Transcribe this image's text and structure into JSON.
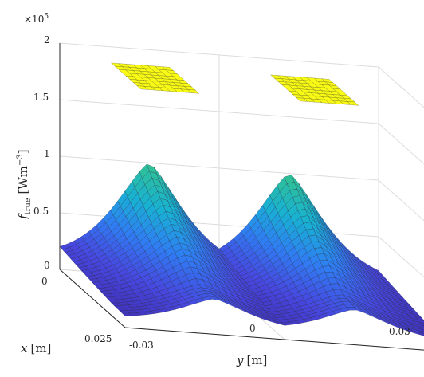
{
  "chart_data": {
    "type": "surface",
    "ylabel": "y [m]",
    "xlabel": "x [m]",
    "zlabel_main": "f",
    "zlabel_sub": "true",
    "zlabel_unit_open": " [Wm",
    "zlabel_unit_exp": "−3",
    "zlabel_unit_close": "]",
    "z_multiplier_base": "×10",
    "z_multiplier_exp": "5",
    "z_ticks": [
      "0",
      "0.5",
      "1",
      "1.5",
      "2"
    ],
    "y_ticks": [
      "-0.03",
      "0",
      "0.03"
    ],
    "x_ticks": [
      "0",
      "0.025"
    ],
    "xlim": [
      0,
      0.025
    ],
    "ylim": [
      -0.03,
      0.03
    ],
    "zlim": [
      0,
      200000
    ],
    "grid": true,
    "colormap": [
      "#3e26a8",
      "#4748e0",
      "#2f7ef3",
      "#18b1d3",
      "#2ec09a",
      "#86c34f",
      "#d0ba2e",
      "#fad42a",
      "#f9fb15"
    ],
    "surface_description_peaks": {
      "ridge_peak_value": 100000,
      "plateau_value": 200000,
      "base_value": 10000
    }
  }
}
